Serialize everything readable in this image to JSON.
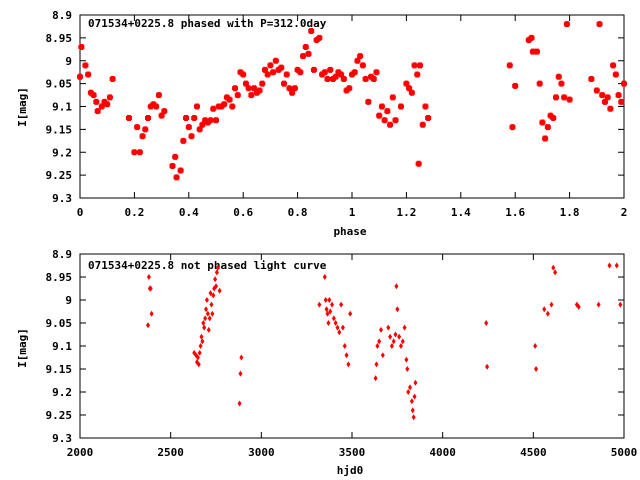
{
  "chart_data": [
    {
      "type": "scatter",
      "title": "071534+0225.8 phased with P=312.0day",
      "xlabel": "phase",
      "ylabel": "I[mag]",
      "xlim": [
        0,
        2
      ],
      "ylim": [
        8.9,
        9.3
      ],
      "y_inverted": true,
      "grid": false,
      "marker_color": "#ff0000",
      "marker": "filled-square-cross",
      "x_ticks": [
        "0",
        "0.2",
        "0.4",
        "0.6",
        "0.8",
        "1",
        "1.2",
        "1.4",
        "1.6",
        "1.8",
        "2"
      ],
      "y_ticks": [
        "8.9",
        "8.95",
        "9",
        "9.05",
        "9.1",
        "9.15",
        "9.2",
        "9.25",
        "9.3"
      ],
      "series": [
        {
          "points": [
            [
              0.0,
              9.035
            ],
            [
              0.005,
              8.97
            ],
            [
              0.02,
              9.01
            ],
            [
              0.03,
              9.03
            ],
            [
              0.04,
              9.07
            ],
            [
              0.05,
              9.075
            ],
            [
              0.06,
              9.09
            ],
            [
              0.065,
              9.11
            ],
            [
              0.08,
              9.1
            ],
            [
              0.09,
              9.09
            ],
            [
              0.1,
              9.095
            ],
            [
              0.11,
              9.08
            ],
            [
              0.12,
              9.04
            ],
            [
              0.18,
              9.125
            ],
            [
              0.2,
              9.2
            ],
            [
              0.21,
              9.145
            ],
            [
              0.22,
              9.2
            ],
            [
              0.23,
              9.165
            ],
            [
              0.24,
              9.15
            ],
            [
              0.25,
              9.125
            ],
            [
              0.26,
              9.1
            ],
            [
              0.27,
              9.095
            ],
            [
              0.28,
              9.1
            ],
            [
              0.29,
              9.075
            ],
            [
              0.3,
              9.12
            ],
            [
              0.31,
              9.11
            ],
            [
              0.34,
              9.23
            ],
            [
              0.35,
              9.21
            ],
            [
              0.355,
              9.255
            ],
            [
              0.37,
              9.24
            ],
            [
              0.38,
              9.175
            ],
            [
              0.39,
              9.125
            ],
            [
              0.4,
              9.145
            ],
            [
              0.41,
              9.165
            ],
            [
              0.42,
              9.125
            ],
            [
              0.43,
              9.1
            ],
            [
              0.44,
              9.15
            ],
            [
              0.45,
              9.14
            ],
            [
              0.46,
              9.13
            ],
            [
              0.47,
              9.135
            ],
            [
              0.48,
              9.13
            ],
            [
              0.49,
              9.105
            ],
            [
              0.5,
              9.13
            ],
            [
              0.51,
              9.1
            ],
            [
              0.52,
              9.1
            ],
            [
              0.53,
              9.095
            ],
            [
              0.54,
              9.08
            ],
            [
              0.55,
              9.085
            ],
            [
              0.56,
              9.1
            ],
            [
              0.57,
              9.06
            ],
            [
              0.58,
              9.075
            ],
            [
              0.59,
              9.025
            ],
            [
              0.6,
              9.03
            ],
            [
              0.61,
              9.05
            ],
            [
              0.62,
              9.06
            ],
            [
              0.63,
              9.075
            ],
            [
              0.64,
              9.06
            ],
            [
              0.65,
              9.07
            ],
            [
              0.66,
              9.065
            ],
            [
              0.67,
              9.05
            ],
            [
              0.68,
              9.02
            ],
            [
              0.69,
              9.03
            ],
            [
              0.7,
              9.01
            ],
            [
              0.71,
              9.025
            ],
            [
              0.72,
              9.0
            ],
            [
              0.73,
              9.02
            ],
            [
              0.74,
              9.015
            ],
            [
              0.75,
              9.05
            ],
            [
              0.76,
              9.03
            ],
            [
              0.77,
              9.06
            ],
            [
              0.78,
              9.07
            ],
            [
              0.79,
              9.06
            ],
            [
              0.8,
              9.02
            ],
            [
              0.81,
              9.025
            ],
            [
              0.82,
              8.99
            ],
            [
              0.83,
              8.97
            ],
            [
              0.84,
              8.985
            ],
            [
              0.85,
              8.935
            ],
            [
              0.86,
              9.02
            ],
            [
              0.87,
              8.955
            ],
            [
              0.88,
              8.95
            ],
            [
              0.89,
              9.03
            ],
            [
              0.9,
              9.025
            ],
            [
              0.91,
              9.04
            ],
            [
              0.92,
              9.02
            ],
            [
              0.93,
              9.04
            ],
            [
              0.94,
              9.035
            ],
            [
              0.95,
              9.025
            ],
            [
              0.96,
              9.03
            ],
            [
              0.97,
              9.04
            ],
            [
              0.98,
              9.065
            ],
            [
              0.99,
              9.06
            ],
            [
              1.0,
              9.03
            ],
            [
              1.01,
              9.025
            ],
            [
              1.02,
              9.0
            ],
            [
              1.03,
              8.99
            ],
            [
              1.04,
              9.01
            ],
            [
              1.05,
              9.04
            ],
            [
              1.06,
              9.09
            ],
            [
              1.07,
              9.035
            ],
            [
              1.08,
              9.04
            ],
            [
              1.09,
              9.025
            ],
            [
              1.1,
              9.12
            ],
            [
              1.11,
              9.1
            ],
            [
              1.12,
              9.13
            ],
            [
              1.13,
              9.11
            ],
            [
              1.14,
              9.14
            ],
            [
              1.15,
              9.08
            ],
            [
              1.16,
              9.13
            ],
            [
              1.18,
              9.1
            ],
            [
              1.2,
              9.05
            ],
            [
              1.21,
              9.06
            ],
            [
              1.22,
              9.07
            ],
            [
              1.23,
              9.01
            ],
            [
              1.24,
              9.03
            ],
            [
              1.245,
              9.225
            ],
            [
              1.25,
              9.01
            ],
            [
              1.26,
              9.14
            ],
            [
              1.27,
              9.1
            ],
            [
              1.28,
              9.125
            ],
            [
              1.58,
              9.01
            ],
            [
              1.59,
              9.145
            ],
            [
              1.6,
              9.055
            ],
            [
              1.65,
              8.955
            ],
            [
              1.66,
              8.95
            ],
            [
              1.665,
              8.98
            ],
            [
              1.68,
              8.98
            ],
            [
              1.69,
              9.05
            ],
            [
              1.7,
              9.135
            ],
            [
              1.71,
              9.17
            ],
            [
              1.72,
              9.145
            ],
            [
              1.73,
              9.12
            ],
            [
              1.74,
              9.125
            ],
            [
              1.75,
              9.08
            ],
            [
              1.76,
              9.035
            ],
            [
              1.77,
              9.05
            ],
            [
              1.78,
              9.08
            ],
            [
              1.79,
              8.92
            ],
            [
              1.8,
              9.085
            ],
            [
              1.88,
              9.04
            ],
            [
              1.9,
              9.065
            ],
            [
              1.91,
              8.92
            ],
            [
              1.92,
              9.075
            ],
            [
              1.93,
              9.09
            ],
            [
              1.94,
              9.08
            ],
            [
              1.95,
              9.105
            ],
            [
              1.96,
              9.01
            ],
            [
              1.97,
              9.03
            ],
            [
              1.98,
              9.075
            ],
            [
              1.99,
              9.09
            ],
            [
              2.0,
              9.05
            ]
          ]
        }
      ]
    },
    {
      "type": "scatter",
      "title": "071534+0225.8 not phased light curve",
      "xlabel": "hjd0",
      "ylabel": "I[mag]",
      "xlim": [
        2000,
        5000
      ],
      "ylim": [
        8.9,
        9.3
      ],
      "y_inverted": true,
      "grid": false,
      "marker_color": "#ff0000",
      "marker": "small-diamond",
      "x_ticks": [
        "2000",
        "2500",
        "3000",
        "3500",
        "4000",
        "4500",
        "5000"
      ],
      "y_ticks": [
        "8.9",
        "8.95",
        "9",
        "9.05",
        "9.1",
        "9.15",
        "9.2",
        "9.25",
        "9.3"
      ],
      "series": [
        {
          "points": [
            [
              2375,
              9.055
            ],
            [
              2380,
              8.95
            ],
            [
              2385,
              8.975
            ],
            [
              2390,
              8.975
            ],
            [
              2395,
              9.03
            ],
            [
              2630,
              9.115
            ],
            [
              2640,
              9.12
            ],
            [
              2645,
              9.135
            ],
            [
              2650,
              9.125
            ],
            [
              2655,
              9.14
            ],
            [
              2660,
              9.115
            ],
            [
              2665,
              9.1
            ],
            [
              2670,
              9.08
            ],
            [
              2675,
              9.09
            ],
            [
              2680,
              9.05
            ],
            [
              2685,
              9.06
            ],
            [
              2690,
              9.04
            ],
            [
              2695,
              9.02
            ],
            [
              2700,
              9.0
            ],
            [
              2705,
              9.03
            ],
            [
              2710,
              9.065
            ],
            [
              2715,
              9.04
            ],
            [
              2720,
              8.985
            ],
            [
              2725,
              9.01
            ],
            [
              2730,
              9.03
            ],
            [
              2735,
              8.99
            ],
            [
              2740,
              8.975
            ],
            [
              2745,
              8.955
            ],
            [
              2750,
              8.97
            ],
            [
              2755,
              8.94
            ],
            [
              2760,
              8.93
            ],
            [
              2770,
              8.98
            ],
            [
              2880,
              9.225
            ],
            [
              2885,
              9.16
            ],
            [
              2890,
              9.125
            ],
            [
              3320,
              9.01
            ],
            [
              3350,
              8.95
            ],
            [
              3355,
              9.0
            ],
            [
              3360,
              9.02
            ],
            [
              3365,
              9.03
            ],
            [
              3370,
              9.05
            ],
            [
              3375,
              9.0
            ],
            [
              3380,
              9.025
            ],
            [
              3390,
              9.01
            ],
            [
              3400,
              9.04
            ],
            [
              3410,
              9.05
            ],
            [
              3420,
              9.06
            ],
            [
              3430,
              9.07
            ],
            [
              3440,
              9.01
            ],
            [
              3450,
              9.06
            ],
            [
              3460,
              9.1
            ],
            [
              3470,
              9.12
            ],
            [
              3480,
              9.14
            ],
            [
              3490,
              9.03
            ],
            [
              3630,
              9.17
            ],
            [
              3635,
              9.14
            ],
            [
              3640,
              9.1
            ],
            [
              3650,
              9.09
            ],
            [
              3660,
              9.065
            ],
            [
              3670,
              9.12
            ],
            [
              3700,
              9.06
            ],
            [
              3710,
              9.08
            ],
            [
              3720,
              9.1
            ],
            [
              3730,
              9.09
            ],
            [
              3740,
              9.075
            ],
            [
              3745,
              8.97
            ],
            [
              3750,
              9.02
            ],
            [
              3760,
              9.08
            ],
            [
              3770,
              9.1
            ],
            [
              3780,
              9.09
            ],
            [
              3790,
              9.06
            ],
            [
              3800,
              9.13
            ],
            [
              3805,
              9.15
            ],
            [
              3810,
              9.2
            ],
            [
              3820,
              9.19
            ],
            [
              3830,
              9.22
            ],
            [
              3835,
              9.24
            ],
            [
              3840,
              9.255
            ],
            [
              3845,
              9.21
            ],
            [
              3850,
              9.18
            ],
            [
              4240,
              9.05
            ],
            [
              4245,
              9.145
            ],
            [
              4510,
              9.1
            ],
            [
              4515,
              9.15
            ],
            [
              4560,
              9.02
            ],
            [
              4580,
              9.03
            ],
            [
              4600,
              9.01
            ],
            [
              4610,
              8.93
            ],
            [
              4620,
              8.94
            ],
            [
              4740,
              9.01
            ],
            [
              4750,
              9.015
            ],
            [
              4860,
              9.01
            ],
            [
              4920,
              8.925
            ],
            [
              4960,
              8.925
            ],
            [
              4980,
              9.01
            ]
          ]
        }
      ]
    }
  ]
}
